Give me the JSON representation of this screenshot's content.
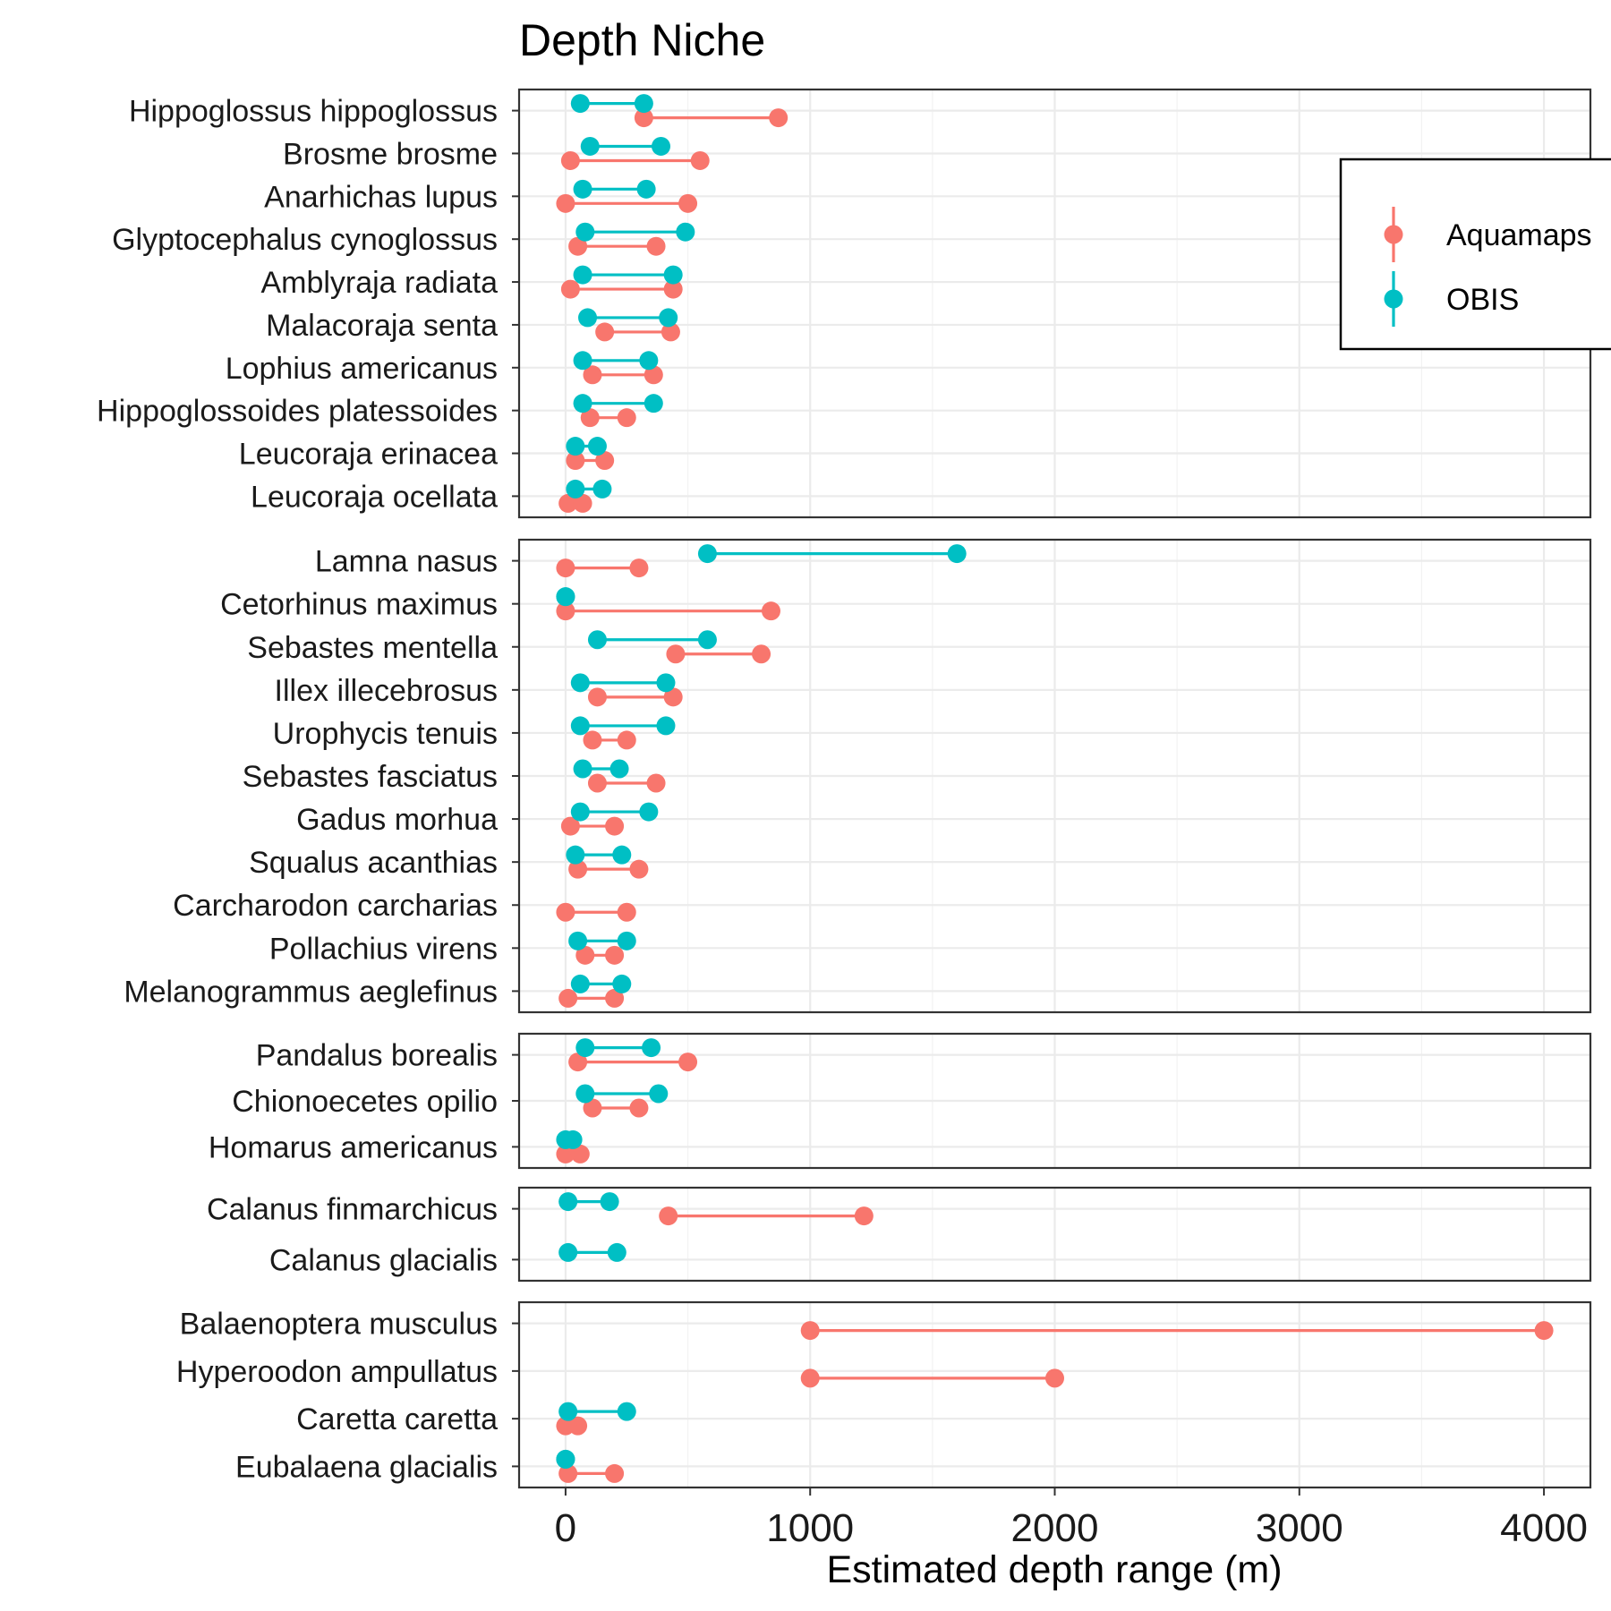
{
  "chart_data": {
    "type": "dumbbell",
    "title": "Depth Niche",
    "xlabel": "Estimated depth range (m)",
    "ylabel": "",
    "xlim": [
      -190,
      4190
    ],
    "xticks": [
      0,
      1000,
      2000,
      3000,
      4000
    ],
    "grid": true,
    "legend": {
      "position": "top-right",
      "entries": [
        {
          "name": "Aquamaps",
          "color": "#F8766D"
        },
        {
          "name": "OBIS",
          "color": "#00BFC4"
        }
      ]
    },
    "panels": [
      {
        "species": [
          {
            "name": "Hippoglossus hippoglossus",
            "aquamaps": [
              320,
              870
            ],
            "obis": [
              60,
              320
            ]
          },
          {
            "name": "Brosme brosme",
            "aquamaps": [
              20,
              550
            ],
            "obis": [
              100,
              390
            ]
          },
          {
            "name": "Anarhichas lupus",
            "aquamaps": [
              0,
              500
            ],
            "obis": [
              70,
              330
            ]
          },
          {
            "name": "Glyptocephalus cynoglossus",
            "aquamaps": [
              50,
              370
            ],
            "obis": [
              80,
              490
            ]
          },
          {
            "name": "Amblyraja radiata",
            "aquamaps": [
              20,
              440
            ],
            "obis": [
              70,
              440
            ]
          },
          {
            "name": "Malacoraja senta",
            "aquamaps": [
              160,
              430
            ],
            "obis": [
              90,
              420
            ]
          },
          {
            "name": "Lophius americanus",
            "aquamaps": [
              110,
              360
            ],
            "obis": [
              70,
              340
            ]
          },
          {
            "name": "Hippoglossoides platessoides",
            "aquamaps": [
              100,
              250
            ],
            "obis": [
              70,
              360
            ]
          },
          {
            "name": "Leucoraja erinacea",
            "aquamaps": [
              40,
              160
            ],
            "obis": [
              40,
              130
            ]
          },
          {
            "name": "Leucoraja ocellata",
            "aquamaps": [
              10,
              70
            ],
            "obis": [
              40,
              150
            ]
          }
        ]
      },
      {
        "species": [
          {
            "name": "Lamna nasus",
            "aquamaps": [
              0,
              300
            ],
            "obis": [
              580,
              1600
            ]
          },
          {
            "name": "Cetorhinus maximus",
            "aquamaps": [
              0,
              840
            ],
            "obis": [
              0,
              0
            ]
          },
          {
            "name": "Sebastes mentella",
            "aquamaps": [
              450,
              800
            ],
            "obis": [
              130,
              580
            ]
          },
          {
            "name": "Illex illecebrosus",
            "aquamaps": [
              130,
              440
            ],
            "obis": [
              60,
              410
            ]
          },
          {
            "name": "Urophycis tenuis",
            "aquamaps": [
              110,
              250
            ],
            "obis": [
              60,
              410
            ]
          },
          {
            "name": "Sebastes fasciatus",
            "aquamaps": [
              130,
              370
            ],
            "obis": [
              70,
              220
            ]
          },
          {
            "name": "Gadus morhua",
            "aquamaps": [
              20,
              200
            ],
            "obis": [
              60,
              340
            ]
          },
          {
            "name": "Squalus acanthias",
            "aquamaps": [
              50,
              300
            ],
            "obis": [
              40,
              230
            ]
          },
          {
            "name": "Carcharodon carcharias",
            "aquamaps": [
              0,
              250
            ],
            "obis": null
          },
          {
            "name": "Pollachius virens",
            "aquamaps": [
              80,
              200
            ],
            "obis": [
              50,
              250
            ]
          },
          {
            "name": "Melanogrammus aeglefinus",
            "aquamaps": [
              10,
              200
            ],
            "obis": [
              60,
              230
            ]
          }
        ]
      },
      {
        "species": [
          {
            "name": "Pandalus borealis",
            "aquamaps": [
              50,
              500
            ],
            "obis": [
              80,
              350
            ]
          },
          {
            "name": "Chionoecetes opilio",
            "aquamaps": [
              110,
              300
            ],
            "obis": [
              80,
              380
            ]
          },
          {
            "name": "Homarus americanus",
            "aquamaps": [
              0,
              60
            ],
            "obis": [
              0,
              30
            ]
          }
        ]
      },
      {
        "species": [
          {
            "name": "Calanus finmarchicus",
            "aquamaps": [
              420,
              1220
            ],
            "obis": [
              10,
              180
            ]
          },
          {
            "name": "Calanus glacialis",
            "aquamaps": null,
            "obis": [
              10,
              210
            ]
          }
        ]
      },
      {
        "species": [
          {
            "name": "Balaenoptera musculus",
            "aquamaps": [
              1000,
              4000
            ],
            "obis": null
          },
          {
            "name": "Hyperoodon ampullatus",
            "aquamaps": [
              1000,
              2000
            ],
            "obis": null
          },
          {
            "name": "Caretta caretta",
            "aquamaps": [
              0,
              50
            ],
            "obis": [
              10,
              250
            ]
          },
          {
            "name": "Eubalaena glacialis",
            "aquamaps": [
              10,
              200
            ],
            "obis": [
              0,
              0
            ]
          }
        ]
      }
    ]
  }
}
